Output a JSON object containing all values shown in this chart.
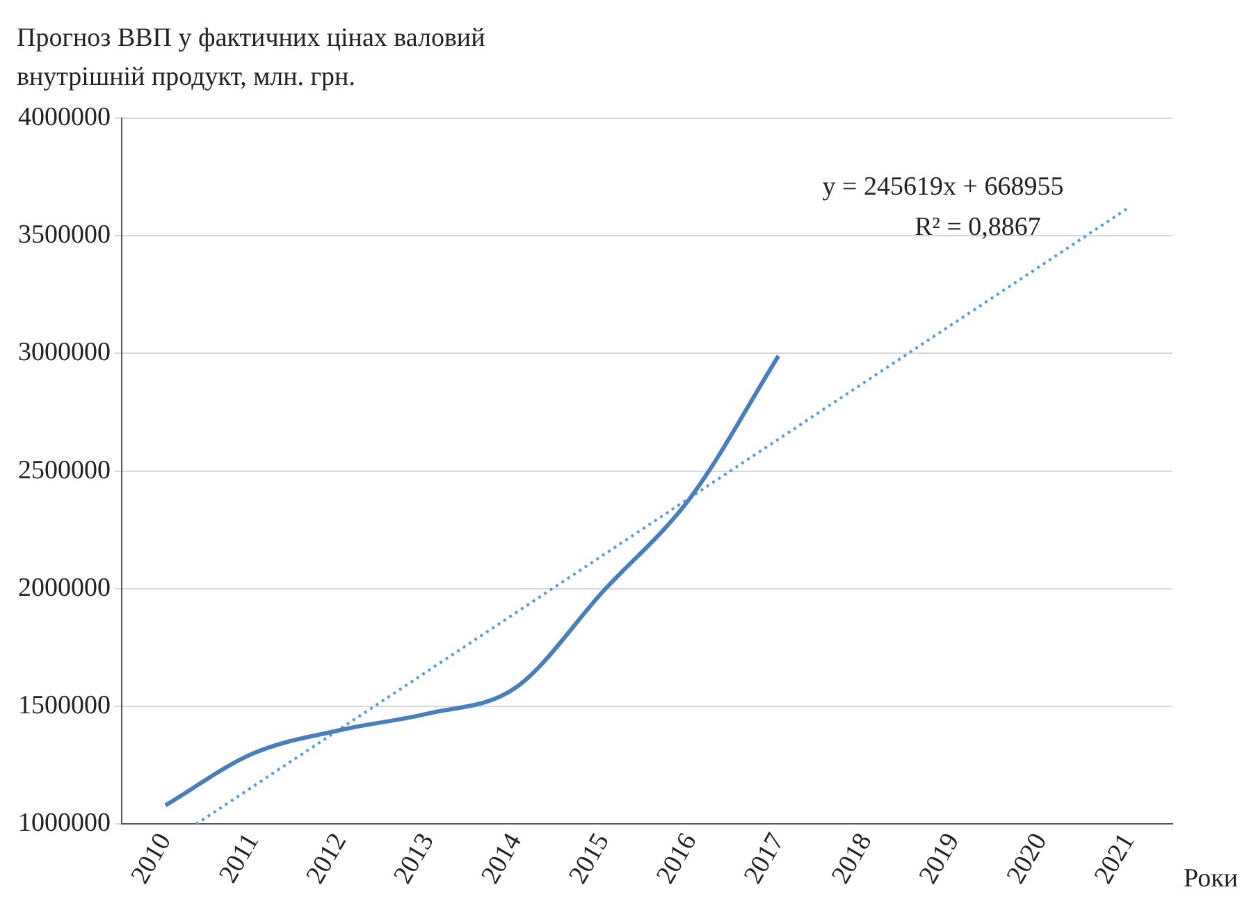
{
  "chart_data": {
    "type": "line",
    "title": "Прогноз ВВП у фактичних цінах валовий внутрішній продукт, млн. грн.",
    "xlabel": "Роки",
    "series": [
      {
        "color": "#4a7ebb",
        "x": [
          2010,
          2011,
          2012,
          2013,
          2014,
          2015,
          2016,
          2017
        ],
        "values": [
          1080000,
          1300000,
          1400000,
          1470000,
          1580000,
          1990000,
          2390000,
          2990000
        ],
        "line_style": "solid"
      },
      {
        "type": "line",
        "color": "#5b9bd5",
        "x": [
          2010.35,
          2021
        ],
        "values": [
          1000000,
          3620000
        ],
        "line_style": "dotted"
      }
    ],
    "xlim": [
      2009.5,
      2021.5
    ],
    "xticks": [
      2010,
      2011,
      2012,
      2013,
      2014,
      2015,
      2016,
      2017,
      2018,
      2019,
      2020,
      2021
    ],
    "ylim": [
      1000000,
      4000000
    ],
    "yticks": [
      1000000,
      1500000,
      2000000,
      2500000,
      3000000,
      3500000,
      4000000
    ],
    "grid": "y",
    "legend": false,
    "marker": "none",
    "annotations": [
      "y = 245619x + 668955",
      "R² = 0,8867"
    ]
  }
}
